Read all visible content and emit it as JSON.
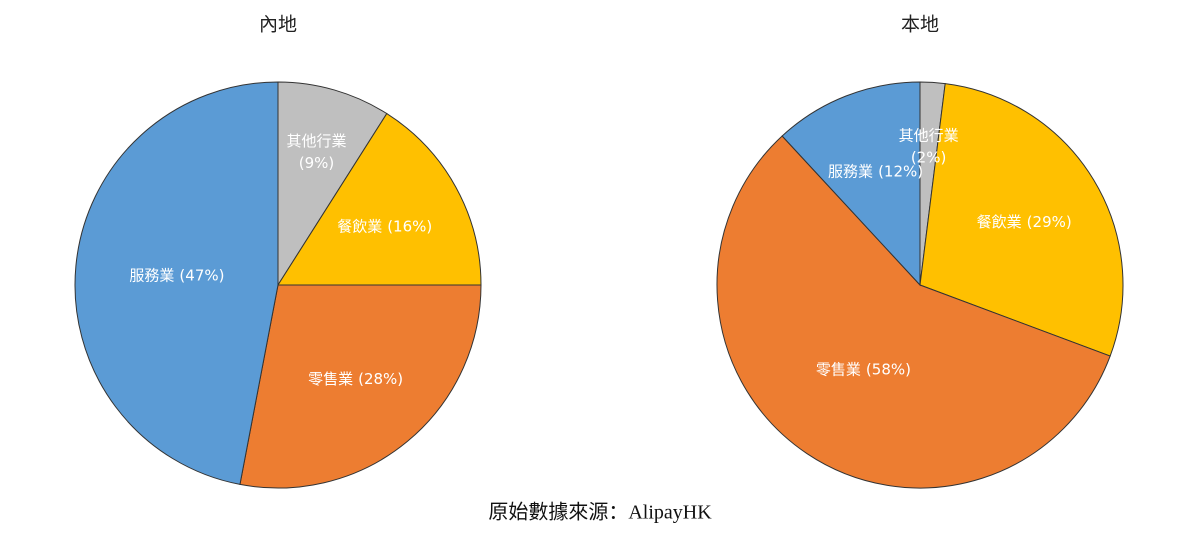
{
  "chart_data": [
    {
      "type": "pie",
      "title": "內地",
      "categories": [
        "其他行業",
        "餐飲業",
        "零售業",
        "服務業"
      ],
      "values": [
        9,
        16,
        28,
        47
      ],
      "value_labels": [
        "(9%)",
        "(16%)",
        "(28%)",
        "(47%)"
      ],
      "colors": [
        "#bfbfbf",
        "#ffc000",
        "#ed7d31",
        "#5b9bd5"
      ]
    },
    {
      "type": "pie",
      "title": "本地",
      "categories": [
        "其他行業",
        "餐飲業",
        "零售業",
        "服務業"
      ],
      "values": [
        2,
        29,
        58,
        12
      ],
      "value_labels": [
        "(2%)",
        "(29%)",
        "(58%)",
        "(12%)"
      ],
      "colors": [
        "#bfbfbf",
        "#ffc000",
        "#ed7d31",
        "#5b9bd5"
      ]
    }
  ],
  "source": "原始數據來源：AlipayHK"
}
